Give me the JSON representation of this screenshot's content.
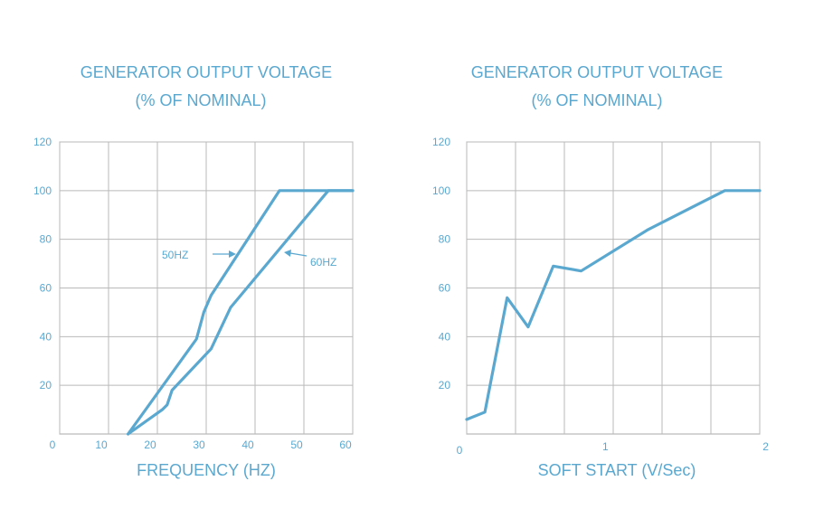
{
  "chart_data": [
    {
      "type": "line",
      "title": [
        "GENERATOR OUTPUT VOLTAGE",
        "(% OF NOMINAL)"
      ],
      "xlabel": "FREQUENCY (HZ)",
      "ylabel": "",
      "xlim": [
        0,
        60
      ],
      "ylim": [
        0,
        120
      ],
      "xticks": [
        0,
        10,
        20,
        30,
        40,
        50,
        60
      ],
      "xtick_labels": [
        "0",
        "10",
        "20",
        "30",
        "40",
        "50",
        "60"
      ],
      "yticks": [
        20,
        40,
        60,
        80,
        100,
        120
      ],
      "ytick_labels": [
        "20",
        "40",
        "60",
        "80",
        "100",
        "120"
      ],
      "grid": true,
      "series": [
        {
          "name": "50HZ",
          "x": [
            14,
            28,
            29.5,
            31,
            45,
            61
          ],
          "y": [
            0,
            39,
            50,
            57,
            100,
            100
          ]
        },
        {
          "name": "60HZ",
          "x": [
            14,
            21,
            22,
            23,
            31,
            35,
            55,
            61
          ],
          "y": [
            0,
            10,
            12,
            18,
            35,
            52,
            100,
            100
          ]
        }
      ],
      "annotations": [
        {
          "text": "50HZ",
          "series": "50HZ"
        },
        {
          "text": "60HZ",
          "series": "60HZ"
        }
      ]
    },
    {
      "type": "line",
      "title": [
        "GENERATOR OUTPUT VOLTAGE",
        "(% OF NOMINAL)"
      ],
      "xlabel": "SOFT START (V/Sec)",
      "ylabel": "",
      "xlim": [
        0,
        2.1
      ],
      "ylim": [
        0,
        120
      ],
      "xticks": [
        0,
        1,
        2
      ],
      "xtick_labels": [
        "0",
        "1",
        "2"
      ],
      "yticks": [
        20,
        40,
        60,
        80,
        100,
        120
      ],
      "ytick_labels": [
        "20",
        "40",
        "60",
        "80",
        "100",
        "120"
      ],
      "grid": true,
      "series": [
        {
          "x": [
            0,
            0.13,
            0.29,
            0.44,
            0.62,
            0.82,
            1.3,
            1.85,
            2.1
          ],
          "y": [
            6,
            9,
            56,
            44,
            69,
            67,
            84,
            100,
            100
          ]
        }
      ]
    }
  ]
}
